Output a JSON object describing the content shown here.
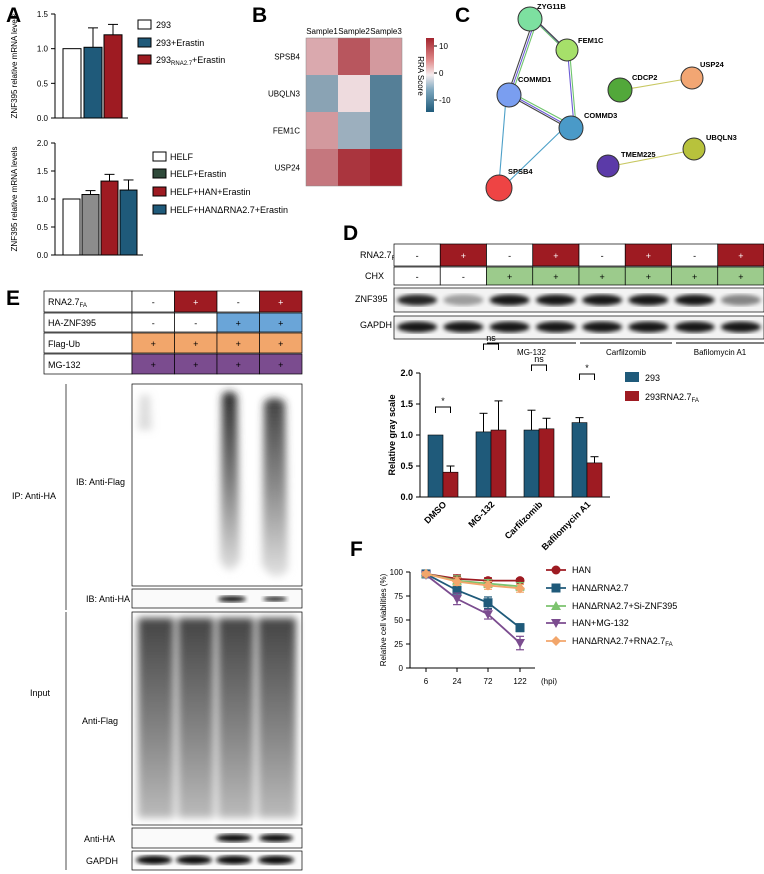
{
  "panels": {
    "A": "A",
    "B": "B",
    "C": "C",
    "D": "D",
    "E": "E",
    "F": "F"
  },
  "colors": {
    "white": "#ffffff",
    "blue": "#1f5a7a",
    "red": "#9e1b22",
    "darkgreen": "#2f4a3a",
    "gray": "#8c8c8c",
    "purple": "#7b4c8f",
    "orange": "#f2a66b",
    "lightgreen": "#9ccb8c",
    "lightblue": "#6aa5d8"
  },
  "panelA": {
    "top": {
      "ylabel": "ZNF395 relative mRNA levels",
      "ymax": 1.5,
      "ticks": [
        "0.0",
        "0.5",
        "1.0",
        "1.5"
      ],
      "legend": [
        "293",
        "293+Erastin",
        "293",
        "RNA2.7",
        "+Erastin"
      ],
      "values": [
        1.0,
        1.02,
        1.2
      ],
      "errors": [
        0,
        0.28,
        0.15
      ]
    },
    "bottom": {
      "ylabel": "ZNF395 relative mRNA levels",
      "ymax": 2.0,
      "ticks": [
        "0.0",
        "0.5",
        "1.0",
        "1.5",
        "2.0"
      ],
      "legend": [
        "HELF",
        "HELF+Erastin",
        "HELF+HAN+Erastin",
        "HELF+HANΔRNA2.7+Erastin"
      ],
      "values": [
        1.0,
        1.08,
        1.32,
        1.16
      ],
      "errors": [
        0,
        0.07,
        0.12,
        0.18
      ]
    }
  },
  "panelB": {
    "cols": [
      "Sample1",
      "Sample2",
      "Sample3"
    ],
    "rows": [
      "SPSB4",
      "UBQLN3",
      "FEM1C",
      "USP24"
    ],
    "values": [
      [
        4,
        9,
        5
      ],
      [
        -6,
        1,
        -9
      ],
      [
        5,
        -5,
        -9
      ],
      [
        7,
        11,
        12
      ]
    ],
    "colorbar": {
      "label": "RRA Score",
      "ticks": [
        "10",
        "0",
        "-10"
      ]
    }
  },
  "panelC": {
    "nodes": [
      "ZYG11B",
      "FEM1C",
      "COMMD1",
      "COMMD3",
      "SPSB4",
      "CDCP2",
      "USP24",
      "TMEM225",
      "UBQLN3"
    ]
  },
  "panelD": {
    "rowlabels": [
      "RNA2.7",
      "FA",
      "CHX",
      "ZNF395",
      "GAPDH"
    ],
    "rna": [
      "-",
      "+",
      "-",
      "+",
      "-",
      "+",
      "-",
      "+"
    ],
    "chx": [
      "-",
      "-",
      "+",
      "+",
      "+",
      "+",
      "+",
      "+"
    ],
    "groups": [
      "MG-132",
      "Carfilzomib",
      "Bafilomycin A1"
    ],
    "chart": {
      "ylabel": "Relative gray scale",
      "ticks": [
        "0.0",
        "0.5",
        "1.0",
        "1.5",
        "2.0"
      ],
      "ymax": 2.0,
      "categories": [
        "DMSO",
        "MG-132",
        "Carfilzomib",
        "Bafilomycin A1"
      ],
      "sig": [
        "*",
        "ns",
        "ns",
        "*"
      ],
      "legend": [
        "293",
        "293RNA2.7",
        "FA"
      ],
      "series": [
        {
          "values": [
            1.0,
            1.05,
            1.08,
            1.2
          ],
          "errors": [
            0,
            0.3,
            0.32,
            0.08
          ]
        },
        {
          "values": [
            0.4,
            1.08,
            1.1,
            0.55
          ],
          "errors": [
            0.1,
            0.47,
            0.17,
            0.1
          ]
        }
      ]
    }
  },
  "panelE": {
    "rowlabels": [
      "RNA2.7",
      "FA",
      "HA-ZNF395",
      "Flag-Ub",
      "MG-132"
    ],
    "rna": [
      "-",
      "+",
      "-",
      "+"
    ],
    "ha": [
      "-",
      "-",
      "+",
      "+"
    ],
    "flag": [
      "+",
      "+",
      "+",
      "+"
    ],
    "mg": [
      "+",
      "+",
      "+",
      "+"
    ],
    "labels": {
      "ip": "IP: Anti-HA",
      "ibflag": "IB: Anti-Flag",
      "ibha": "IB: Anti-HA",
      "input": "Input",
      "aflag": "Anti-Flag",
      "aha": "Anti-HA",
      "gapdh": "GAPDH"
    }
  },
  "panelF": {
    "ylabel": "Relative cell viabilities (%)",
    "ticks": [
      "0",
      "25",
      "50",
      "75",
      "100"
    ],
    "xticks": [
      "6",
      "24",
      "72",
      "122"
    ],
    "xunit": "(hpi)",
    "legend": [
      "HAN",
      "HANΔRNA2.7",
      "HANΔRNA2.7+Si-ZNF395",
      "HAN+MG-132",
      "HANΔRNA2.7+RNA2.7",
      "FA"
    ],
    "series": [
      {
        "values": [
          98,
          93,
          91,
          91
        ],
        "errors": [
          2,
          4,
          3,
          2
        ]
      },
      {
        "values": [
          98,
          81,
          68,
          42
        ],
        "errors": [
          2,
          3,
          6,
          4
        ]
      },
      {
        "values": [
          98,
          91,
          88,
          85
        ],
        "errors": [
          2,
          5,
          4,
          4
        ]
      },
      {
        "values": [
          97,
          72,
          56,
          26
        ],
        "errors": [
          2,
          6,
          5,
          7
        ]
      },
      {
        "values": [
          98,
          90,
          86,
          83
        ],
        "errors": [
          2,
          4,
          4,
          4
        ]
      }
    ]
  }
}
